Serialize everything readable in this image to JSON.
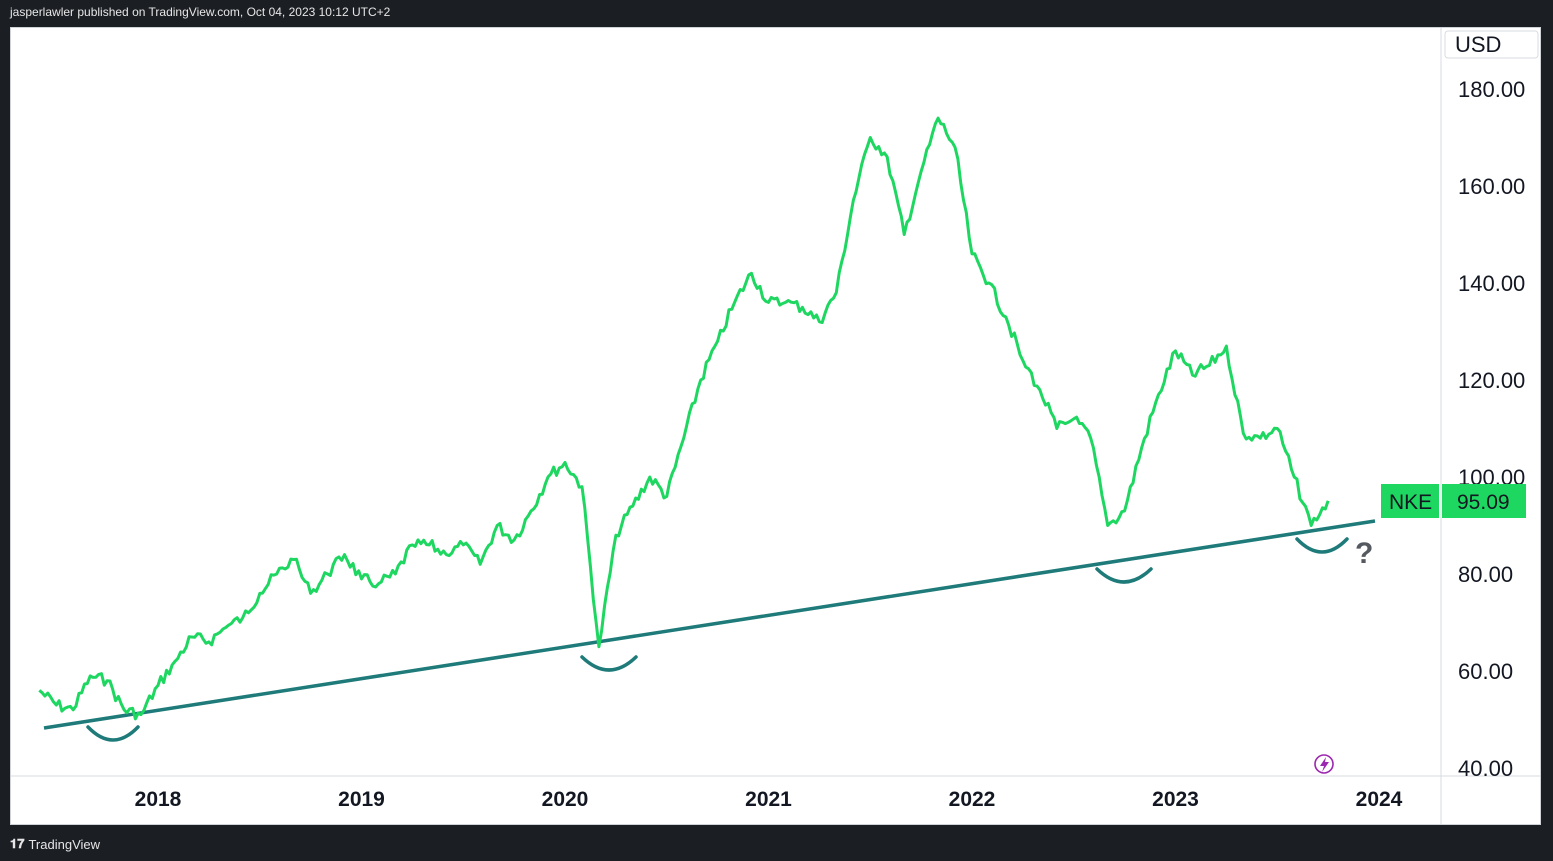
{
  "header": {
    "text": "jasperlawler published on TradingView.com, Oct 04, 2023 10:12 UTC+2"
  },
  "footer": {
    "brand": "TradingView",
    "logo": "tv-logo-icon"
  },
  "colors": {
    "price_line": "#1ed760",
    "trend_line": "#1e7b7a",
    "axis_text": "#131722",
    "label_bg": "#1ed760",
    "lightning": "#9c27b0"
  },
  "chart_data": {
    "type": "line",
    "symbol": "NKE",
    "last_price": "95.09",
    "currency": "USD",
    "y_ticks": [
      "180.00",
      "160.00",
      "140.00",
      "120.00",
      "100.00",
      "80.00",
      "60.00",
      "40.00"
    ],
    "x_ticks": [
      "2018",
      "2019",
      "2020",
      "2021",
      "2022",
      "2023",
      "2024"
    ],
    "ylim": [
      40,
      180
    ],
    "series": [
      {
        "points": [
          [
            "2017-06",
            56
          ],
          [
            "2017-07",
            53
          ],
          [
            "2017-08",
            52
          ],
          [
            "2017-09",
            59
          ],
          [
            "2017-10",
            58
          ],
          [
            "2017-11",
            52
          ],
          [
            "2017-12",
            51
          ],
          [
            "2018-01",
            57
          ],
          [
            "2018-02",
            62
          ],
          [
            "2018-03",
            67
          ],
          [
            "2018-04",
            66
          ],
          [
            "2018-05",
            69
          ],
          [
            "2018-06",
            71
          ],
          [
            "2018-07",
            76
          ],
          [
            "2018-08",
            80
          ],
          [
            "2018-09",
            83
          ],
          [
            "2018-10",
            76
          ],
          [
            "2018-11",
            80
          ],
          [
            "2018-12",
            84
          ],
          [
            "2019-01",
            79
          ],
          [
            "2019-02",
            78
          ],
          [
            "2019-03",
            80
          ],
          [
            "2019-04",
            86
          ],
          [
            "2019-05",
            86
          ],
          [
            "2019-06",
            84
          ],
          [
            "2019-07",
            86
          ],
          [
            "2019-08",
            82
          ],
          [
            "2019-09",
            90
          ],
          [
            "2019-10",
            87
          ],
          [
            "2019-11",
            93
          ],
          [
            "2019-12",
            100
          ],
          [
            "2020-01",
            103
          ],
          [
            "2020-02",
            98
          ],
          [
            "2020-03",
            65
          ],
          [
            "2020-04",
            88
          ],
          [
            "2020-05",
            94
          ],
          [
            "2020-06",
            100
          ],
          [
            "2020-07",
            96
          ],
          [
            "2020-08",
            108
          ],
          [
            "2020-09",
            120
          ],
          [
            "2020-10",
            128
          ],
          [
            "2020-11",
            136
          ],
          [
            "2020-12",
            142
          ],
          [
            "2021-01",
            136
          ],
          [
            "2021-02",
            136
          ],
          [
            "2021-03",
            135
          ],
          [
            "2021-04",
            132
          ],
          [
            "2021-05",
            138
          ],
          [
            "2021-06",
            157
          ],
          [
            "2021-07",
            170
          ],
          [
            "2021-08",
            166
          ],
          [
            "2021-09",
            150
          ],
          [
            "2021-10",
            163
          ],
          [
            "2021-11",
            174
          ],
          [
            "2021-12",
            168
          ],
          [
            "2022-01",
            146
          ],
          [
            "2022-02",
            140
          ],
          [
            "2022-03",
            133
          ],
          [
            "2022-04",
            124
          ],
          [
            "2022-05",
            118
          ],
          [
            "2022-06",
            110
          ],
          [
            "2022-07",
            112
          ],
          [
            "2022-08",
            108
          ],
          [
            "2022-09",
            90
          ],
          [
            "2022-10",
            93
          ],
          [
            "2022-11",
            106
          ],
          [
            "2022-12",
            117
          ],
          [
            "2023-01",
            126
          ],
          [
            "2023-02",
            121
          ],
          [
            "2023-03",
            123
          ],
          [
            "2023-04",
            127
          ],
          [
            "2023-05",
            109
          ],
          [
            "2023-06",
            108
          ],
          [
            "2023-07",
            110
          ],
          [
            "2023-08",
            100
          ],
          [
            "2023-09",
            90
          ],
          [
            "2023-10",
            95.09
          ]
        ]
      }
    ],
    "trendline": [
      [
        "2017-06",
        49
      ],
      [
        "2024-01",
        91
      ]
    ],
    "annotations": [
      "?"
    ]
  }
}
